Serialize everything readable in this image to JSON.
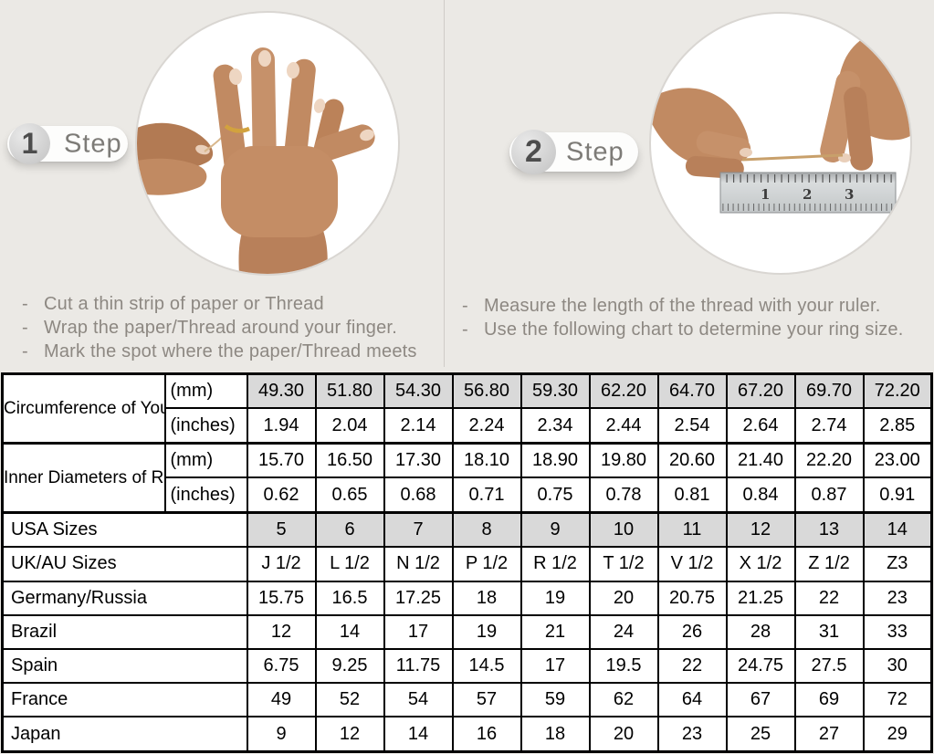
{
  "bullet": "-",
  "step1": {
    "number": "1",
    "label": "Step",
    "illustration": "hand-with-ring-and-thread",
    "instructions": [
      "Cut a thin strip of paper or Thread",
      "Wrap the paper/Thread around your finger.",
      "Mark the spot where the paper/Thread meets"
    ]
  },
  "step2": {
    "number": "2",
    "label": "Step",
    "illustration": "hands-measuring-thread-with-ruler",
    "ruler_numbers": [
      "1",
      "2",
      "3"
    ],
    "instructions": [
      "Measure the length of the thread with your ruler.",
      "Use the following chart to determine your ring size."
    ]
  },
  "size_chart": {
    "rows": [
      {
        "label": "Circumference of Your Finger",
        "unit": "(mm)",
        "shaded": true,
        "values": [
          "49.30",
          "51.80",
          "54.30",
          "56.80",
          "59.30",
          "62.20",
          "64.70",
          "67.20",
          "69.70",
          "72.20"
        ]
      },
      {
        "unit": "(inches)",
        "values": [
          "1.94",
          "2.04",
          "2.14",
          "2.24",
          "2.34",
          "2.44",
          "2.54",
          "2.64",
          "2.74",
          "2.85"
        ]
      },
      {
        "label": "Inner Diameters of Rings",
        "unit": "(mm)",
        "values": [
          "15.70",
          "16.50",
          "17.30",
          "18.10",
          "18.90",
          "19.80",
          "20.60",
          "21.40",
          "22.20",
          "23.00"
        ]
      },
      {
        "unit": "(inches)",
        "values": [
          "0.62",
          "0.65",
          "0.68",
          "0.71",
          "0.75",
          "0.78",
          "0.81",
          "0.84",
          "0.87",
          "0.91"
        ]
      },
      {
        "label": "USA Sizes",
        "shaded": true,
        "values": [
          "5",
          "6",
          "7",
          "8",
          "9",
          "10",
          "11",
          "12",
          "13",
          "14"
        ]
      },
      {
        "label": "UK/AU Sizes",
        "values": [
          "J 1/2",
          "L 1/2",
          "N 1/2",
          "P 1/2",
          "R 1/2",
          "T 1/2",
          "V 1/2",
          "X 1/2",
          "Z 1/2",
          "Z3"
        ]
      },
      {
        "label": "Germany/Russia",
        "values": [
          "15.75",
          "16.5",
          "17.25",
          "18",
          "19",
          "20",
          "20.75",
          "21.25",
          "22",
          "23"
        ]
      },
      {
        "label": "Brazil",
        "values": [
          "12",
          "14",
          "17",
          "19",
          "21",
          "24",
          "26",
          "28",
          "31",
          "33"
        ]
      },
      {
        "label": "Spain",
        "values": [
          "6.75",
          "9.25",
          "11.75",
          "14.5",
          "17",
          "19.5",
          "22",
          "24.75",
          "27.5",
          "30"
        ]
      },
      {
        "label": "France",
        "values": [
          "49",
          "52",
          "54",
          "57",
          "59",
          "62",
          "64",
          "67",
          "69",
          "72"
        ]
      },
      {
        "label": "Japan",
        "values": [
          "9",
          "12",
          "14",
          "16",
          "18",
          "20",
          "23",
          "25",
          "27",
          "29"
        ]
      }
    ]
  },
  "colors": {
    "page_background": "#ebe9e5",
    "shaded_cell": "#d9d9d9",
    "table_border": "#000000",
    "instruction_text": "#8d8882",
    "step_label_text": "#7d7b77",
    "ring_gold": "#d2a23e",
    "skin_tone": "#c18a62"
  }
}
